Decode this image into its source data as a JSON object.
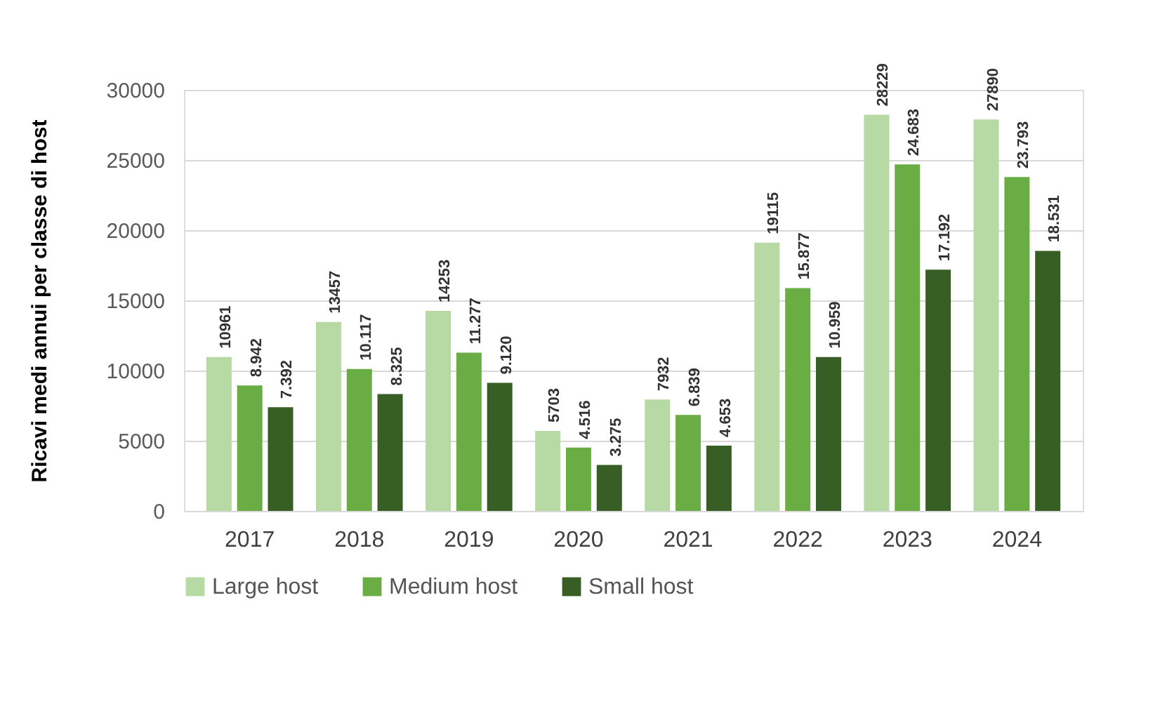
{
  "chart_data": {
    "type": "bar",
    "ylabel": "Ricavi medi annui per classe di host",
    "categories": [
      "2017",
      "2018",
      "2019",
      "2020",
      "2021",
      "2022",
      "2023",
      "2024"
    ],
    "series": [
      {
        "name": "Large host",
        "color": "#b7d9a3",
        "values": [
          10961,
          13457,
          14253,
          5703,
          7932,
          19115,
          28229,
          27890
        ],
        "value_labels": [
          "10961",
          "13457",
          "14253",
          "5703",
          "7932",
          "19115",
          "28229",
          "27890"
        ]
      },
      {
        "name": "Medium host",
        "color": "#6aad45",
        "values": [
          8942,
          10117,
          11277,
          4516,
          6839,
          15877,
          24683,
          23793
        ],
        "value_labels": [
          "8.942",
          "10.117",
          "11.277",
          "4.516",
          "6.839",
          "15.877",
          "24.683",
          "23.793"
        ]
      },
      {
        "name": "Small host",
        "color": "#375e24",
        "values": [
          7392,
          8325,
          9120,
          3275,
          4653,
          10959,
          17192,
          18531
        ],
        "value_labels": [
          "7.392",
          "8.325",
          "9.120",
          "3.275",
          "4.653",
          "10.959",
          "17.192",
          "18.531"
        ]
      }
    ],
    "ylim": [
      0,
      30000
    ],
    "yticks": [
      0,
      5000,
      10000,
      15000,
      20000,
      25000,
      30000
    ],
    "grid": "y",
    "legend": "bottom"
  }
}
